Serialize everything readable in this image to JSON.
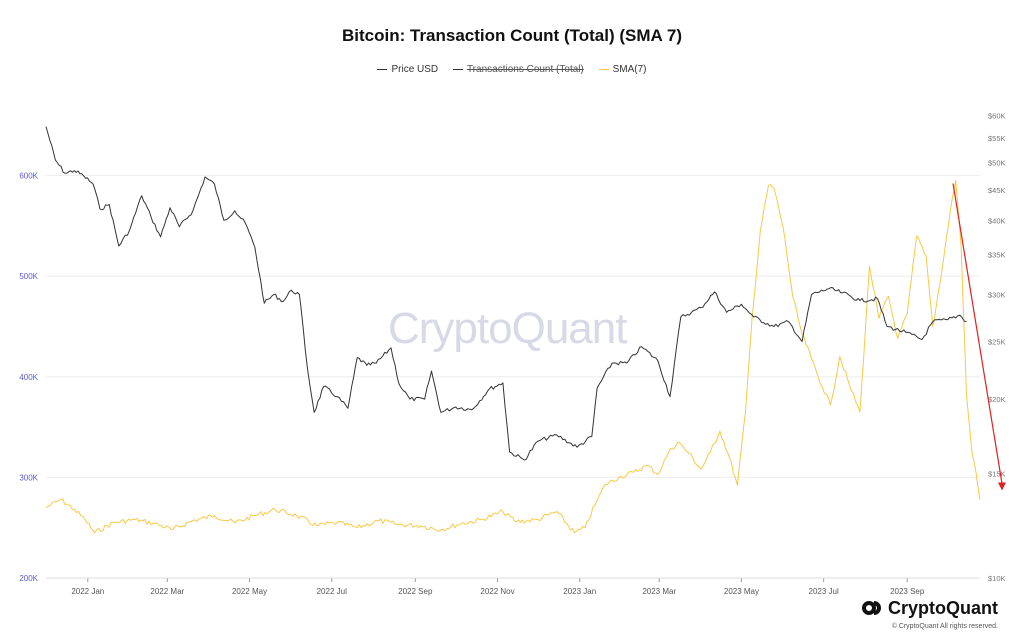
{
  "title": "Bitcoin: Transaction Count (Total) (SMA 7)",
  "legend": {
    "items": [
      {
        "label": "Price USD",
        "color": "#333333",
        "struck": false
      },
      {
        "label": "Transactions Count (Total)",
        "color": "#333333",
        "struck": true
      },
      {
        "label": "SMA(7)",
        "color": "#f7c948",
        "struck": false
      }
    ]
  },
  "watermark": "CryptoQuant",
  "brand": {
    "name": "CryptoQuant",
    "copyright": "© CryptoQuant All rights reserved."
  },
  "colors": {
    "price": "#333333",
    "sma": "#f7c948",
    "arrow": "#e02020",
    "grid": "#eeeeee",
    "left_axis": "#5b5bd6",
    "right_axis": "#777777"
  },
  "chart_data": {
    "type": "line",
    "title": "Bitcoin: Transaction Count (Total) (SMA 7)",
    "x_range": [
      "2021-12-01",
      "2023-10-25"
    ],
    "x_ticks": [
      {
        "date": "2022-01-01",
        "label": "2022 Jan"
      },
      {
        "date": "2022-03-01",
        "label": "2022 Mar"
      },
      {
        "date": "2022-05-01",
        "label": "2022 May"
      },
      {
        "date": "2022-07-01",
        "label": "2022 Jul"
      },
      {
        "date": "2022-09-01",
        "label": "2022 Sep"
      },
      {
        "date": "2022-11-01",
        "label": "2022 Nov"
      },
      {
        "date": "2023-01-01",
        "label": "2023 Jan"
      },
      {
        "date": "2023-03-01",
        "label": "2023 Mar"
      },
      {
        "date": "2023-05-01",
        "label": "2023 May"
      },
      {
        "date": "2023-07-01",
        "label": "2023 Jul"
      },
      {
        "date": "2023-09-01",
        "label": "2023 Sep"
      }
    ],
    "y_left": {
      "ylim": [
        200000,
        680000
      ],
      "ticks": [
        {
          "value": 200000,
          "label": "200K"
        },
        {
          "value": 300000,
          "label": "300K"
        },
        {
          "value": 400000,
          "label": "400K"
        },
        {
          "value": 500000,
          "label": "500K"
        },
        {
          "value": 600000,
          "label": "600K"
        }
      ]
    },
    "y_right": {
      "scale": "log",
      "ylim": [
        10000,
        65000
      ],
      "ticks": [
        {
          "value": 10000,
          "label": "$10K"
        },
        {
          "value": 15000,
          "label": "$15K"
        },
        {
          "value": 20000,
          "label": "$20K"
        },
        {
          "value": 25000,
          "label": "$25K"
        },
        {
          "value": 30000,
          "label": "$30K"
        },
        {
          "value": 35000,
          "label": "$35K"
        },
        {
          "value": 40000,
          "label": "$40K"
        },
        {
          "value": 45000,
          "label": "$45K"
        },
        {
          "value": 50000,
          "label": "$50K"
        },
        {
          "value": 55000,
          "label": "$55K"
        },
        {
          "value": 60000,
          "label": "$60K"
        }
      ]
    },
    "grid": true,
    "legend_position": "top",
    "series": [
      {
        "name": "Price USD",
        "axis": "right",
        "points": [
          [
            "2021-12-01",
            57500
          ],
          [
            "2021-12-08",
            50500
          ],
          [
            "2021-12-15",
            48000
          ],
          [
            "2021-12-22",
            48500
          ],
          [
            "2021-12-29",
            47500
          ],
          [
            "2022-01-05",
            46000
          ],
          [
            "2022-01-10",
            41800
          ],
          [
            "2022-01-17",
            42500
          ],
          [
            "2022-01-24",
            36200
          ],
          [
            "2022-02-01",
            38500
          ],
          [
            "2022-02-10",
            44000
          ],
          [
            "2022-02-17",
            40500
          ],
          [
            "2022-02-24",
            37500
          ],
          [
            "2022-03-03",
            42000
          ],
          [
            "2022-03-10",
            39000
          ],
          [
            "2022-03-20",
            41500
          ],
          [
            "2022-03-29",
            47300
          ],
          [
            "2022-04-05",
            46000
          ],
          [
            "2022-04-12",
            40000
          ],
          [
            "2022-04-20",
            41500
          ],
          [
            "2022-04-28",
            39500
          ],
          [
            "2022-05-05",
            36000
          ],
          [
            "2022-05-12",
            29000
          ],
          [
            "2022-05-19",
            30000
          ],
          [
            "2022-05-26",
            29200
          ],
          [
            "2022-06-01",
            30500
          ],
          [
            "2022-06-07",
            30000
          ],
          [
            "2022-06-13",
            22500
          ],
          [
            "2022-06-18",
            19000
          ],
          [
            "2022-06-25",
            21000
          ],
          [
            "2022-07-05",
            20200
          ],
          [
            "2022-07-13",
            19300
          ],
          [
            "2022-07-20",
            23500
          ],
          [
            "2022-07-27",
            22800
          ],
          [
            "2022-08-03",
            23000
          ],
          [
            "2022-08-14",
            24400
          ],
          [
            "2022-08-20",
            21200
          ],
          [
            "2022-08-28",
            20000
          ],
          [
            "2022-09-08",
            20000
          ],
          [
            "2022-09-13",
            22300
          ],
          [
            "2022-09-20",
            19000
          ],
          [
            "2022-10-01",
            19400
          ],
          [
            "2022-10-13",
            19200
          ],
          [
            "2022-10-26",
            20800
          ],
          [
            "2022-11-05",
            21300
          ],
          [
            "2022-11-10",
            16300
          ],
          [
            "2022-11-21",
            15800
          ],
          [
            "2022-12-01",
            17000
          ],
          [
            "2022-12-15",
            17400
          ],
          [
            "2022-12-30",
            16600
          ],
          [
            "2023-01-10",
            17300
          ],
          [
            "2023-01-14",
            20900
          ],
          [
            "2023-01-25",
            23000
          ],
          [
            "2023-02-05",
            23000
          ],
          [
            "2023-02-16",
            24500
          ],
          [
            "2023-02-28",
            23200
          ],
          [
            "2023-03-09",
            20200
          ],
          [
            "2023-03-17",
            27500
          ],
          [
            "2023-03-25",
            28000
          ],
          [
            "2023-04-01",
            28500
          ],
          [
            "2023-04-11",
            30300
          ],
          [
            "2023-04-20",
            28000
          ],
          [
            "2023-05-01",
            28900
          ],
          [
            "2023-05-10",
            27500
          ],
          [
            "2023-05-25",
            26500
          ],
          [
            "2023-06-05",
            27000
          ],
          [
            "2023-06-15",
            25000
          ],
          [
            "2023-06-22",
            30000
          ],
          [
            "2023-07-05",
            30700
          ],
          [
            "2023-07-15",
            30200
          ],
          [
            "2023-07-28",
            29300
          ],
          [
            "2023-08-10",
            29500
          ],
          [
            "2023-08-17",
            26500
          ],
          [
            "2023-08-31",
            25900
          ],
          [
            "2023-09-12",
            25200
          ],
          [
            "2023-09-20",
            27000
          ],
          [
            "2023-10-01",
            27200
          ],
          [
            "2023-10-10",
            27700
          ],
          [
            "2023-10-15",
            27000
          ]
        ]
      },
      {
        "name": "SMA(7)",
        "axis": "left",
        "points": [
          [
            "2021-12-01",
            270000
          ],
          [
            "2021-12-12",
            278000
          ],
          [
            "2021-12-22",
            268000
          ],
          [
            "2021-12-30",
            258000
          ],
          [
            "2022-01-06",
            245000
          ],
          [
            "2022-01-20",
            255000
          ],
          [
            "2022-02-05",
            258000
          ],
          [
            "2022-02-20",
            254000
          ],
          [
            "2022-03-05",
            248000
          ],
          [
            "2022-03-20",
            257000
          ],
          [
            "2022-04-05",
            262000
          ],
          [
            "2022-04-20",
            255000
          ],
          [
            "2022-05-05",
            262000
          ],
          [
            "2022-05-20",
            268000
          ],
          [
            "2022-06-05",
            262000
          ],
          [
            "2022-06-20",
            252000
          ],
          [
            "2022-07-05",
            255000
          ],
          [
            "2022-07-20",
            250000
          ],
          [
            "2022-08-05",
            257000
          ],
          [
            "2022-08-20",
            253000
          ],
          [
            "2022-09-05",
            252000
          ],
          [
            "2022-09-20",
            248000
          ],
          [
            "2022-10-05",
            254000
          ],
          [
            "2022-10-20",
            258000
          ],
          [
            "2022-11-05",
            266000
          ],
          [
            "2022-11-15",
            256000
          ],
          [
            "2022-12-01",
            258000
          ],
          [
            "2022-12-15",
            266000
          ],
          [
            "2022-12-28",
            245000
          ],
          [
            "2023-01-05",
            250000
          ],
          [
            "2023-01-12",
            272000
          ],
          [
            "2023-01-20",
            293000
          ],
          [
            "2023-01-30",
            300000
          ],
          [
            "2023-02-10",
            305000
          ],
          [
            "2023-02-20",
            312000
          ],
          [
            "2023-02-28",
            303000
          ],
          [
            "2023-03-08",
            325000
          ],
          [
            "2023-03-15",
            335000
          ],
          [
            "2023-03-23",
            324000
          ],
          [
            "2023-04-01",
            308000
          ],
          [
            "2023-04-08",
            325000
          ],
          [
            "2023-04-15",
            346000
          ],
          [
            "2023-04-22",
            320000
          ],
          [
            "2023-04-28",
            292000
          ],
          [
            "2023-05-04",
            365000
          ],
          [
            "2023-05-09",
            460000
          ],
          [
            "2023-05-15",
            545000
          ],
          [
            "2023-05-21",
            590000
          ],
          [
            "2023-05-25",
            588000
          ],
          [
            "2023-06-01",
            548000
          ],
          [
            "2023-06-08",
            480000
          ],
          [
            "2023-06-15",
            442000
          ],
          [
            "2023-06-22",
            418000
          ],
          [
            "2023-06-30",
            390000
          ],
          [
            "2023-07-06",
            372000
          ],
          [
            "2023-07-13",
            420000
          ],
          [
            "2023-07-20",
            392000
          ],
          [
            "2023-07-28",
            365000
          ],
          [
            "2023-08-04",
            510000
          ],
          [
            "2023-08-11",
            458000
          ],
          [
            "2023-08-18",
            480000
          ],
          [
            "2023-08-25",
            438000
          ],
          [
            "2023-09-01",
            462000
          ],
          [
            "2023-09-08",
            540000
          ],
          [
            "2023-09-15",
            520000
          ],
          [
            "2023-09-20",
            450000
          ],
          [
            "2023-09-27",
            508000
          ],
          [
            "2023-10-03",
            565000
          ],
          [
            "2023-10-07",
            595000
          ],
          [
            "2023-10-11",
            530000
          ],
          [
            "2023-10-15",
            382000
          ],
          [
            "2023-10-19",
            325000
          ],
          [
            "2023-10-22",
            305000
          ],
          [
            "2023-10-25",
            278000
          ]
        ]
      }
    ],
    "annotations": [
      {
        "type": "arrow",
        "from": [
          "2023-10-05",
          592000
        ],
        "to": [
          "2023-10-25",
          280000
        ],
        "axis": "left"
      }
    ]
  }
}
